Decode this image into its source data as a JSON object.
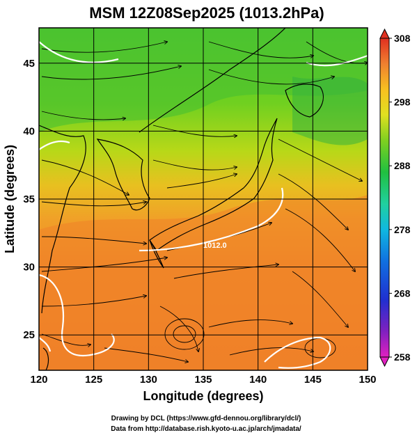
{
  "title": "MSM 12Z08Sep2025 (1013.2hPa)",
  "x_axis_label": "Longitude (degrees)",
  "y_axis_label": "Latitude  (degrees)",
  "x_ticks": [
    120,
    125,
    130,
    135,
    140,
    145,
    150
  ],
  "y_ticks": [
    25,
    30,
    35,
    40,
    45
  ],
  "x_tick_labels": [
    "120",
    "125",
    "130",
    "135",
    "140",
    "145",
    "150"
  ],
  "y_tick_labels": [
    "25",
    "30",
    "35",
    "40",
    "45"
  ],
  "lon_range": [
    120,
    150
  ],
  "lat_range": [
    22.4,
    47.6
  ],
  "colorbar": {
    "min": 258,
    "max": 308,
    "ticks": [
      258,
      268,
      278,
      288,
      298,
      308
    ],
    "tick_labels": [
      "258",
      "268",
      "278",
      "288",
      "298",
      "308"
    ],
    "colors": [
      "#e020c0",
      "#7020c0",
      "#2030d0",
      "#2070e0",
      "#10b0e0",
      "#20d0a0",
      "#20c050",
      "#70d020",
      "#d0e020",
      "#f8d020",
      "#f8a030",
      "#f07030",
      "#e03020"
    ]
  },
  "contour": {
    "level_label": "1012.0",
    "color": "#ffffff"
  },
  "credits": {
    "line1": "Drawing by DCL (https://www.gfd-dennou.org/library/dcl/)",
    "line2": "Data from http://database.rish.kyoto-u.ac.jp/arch/jmadata/"
  }
}
